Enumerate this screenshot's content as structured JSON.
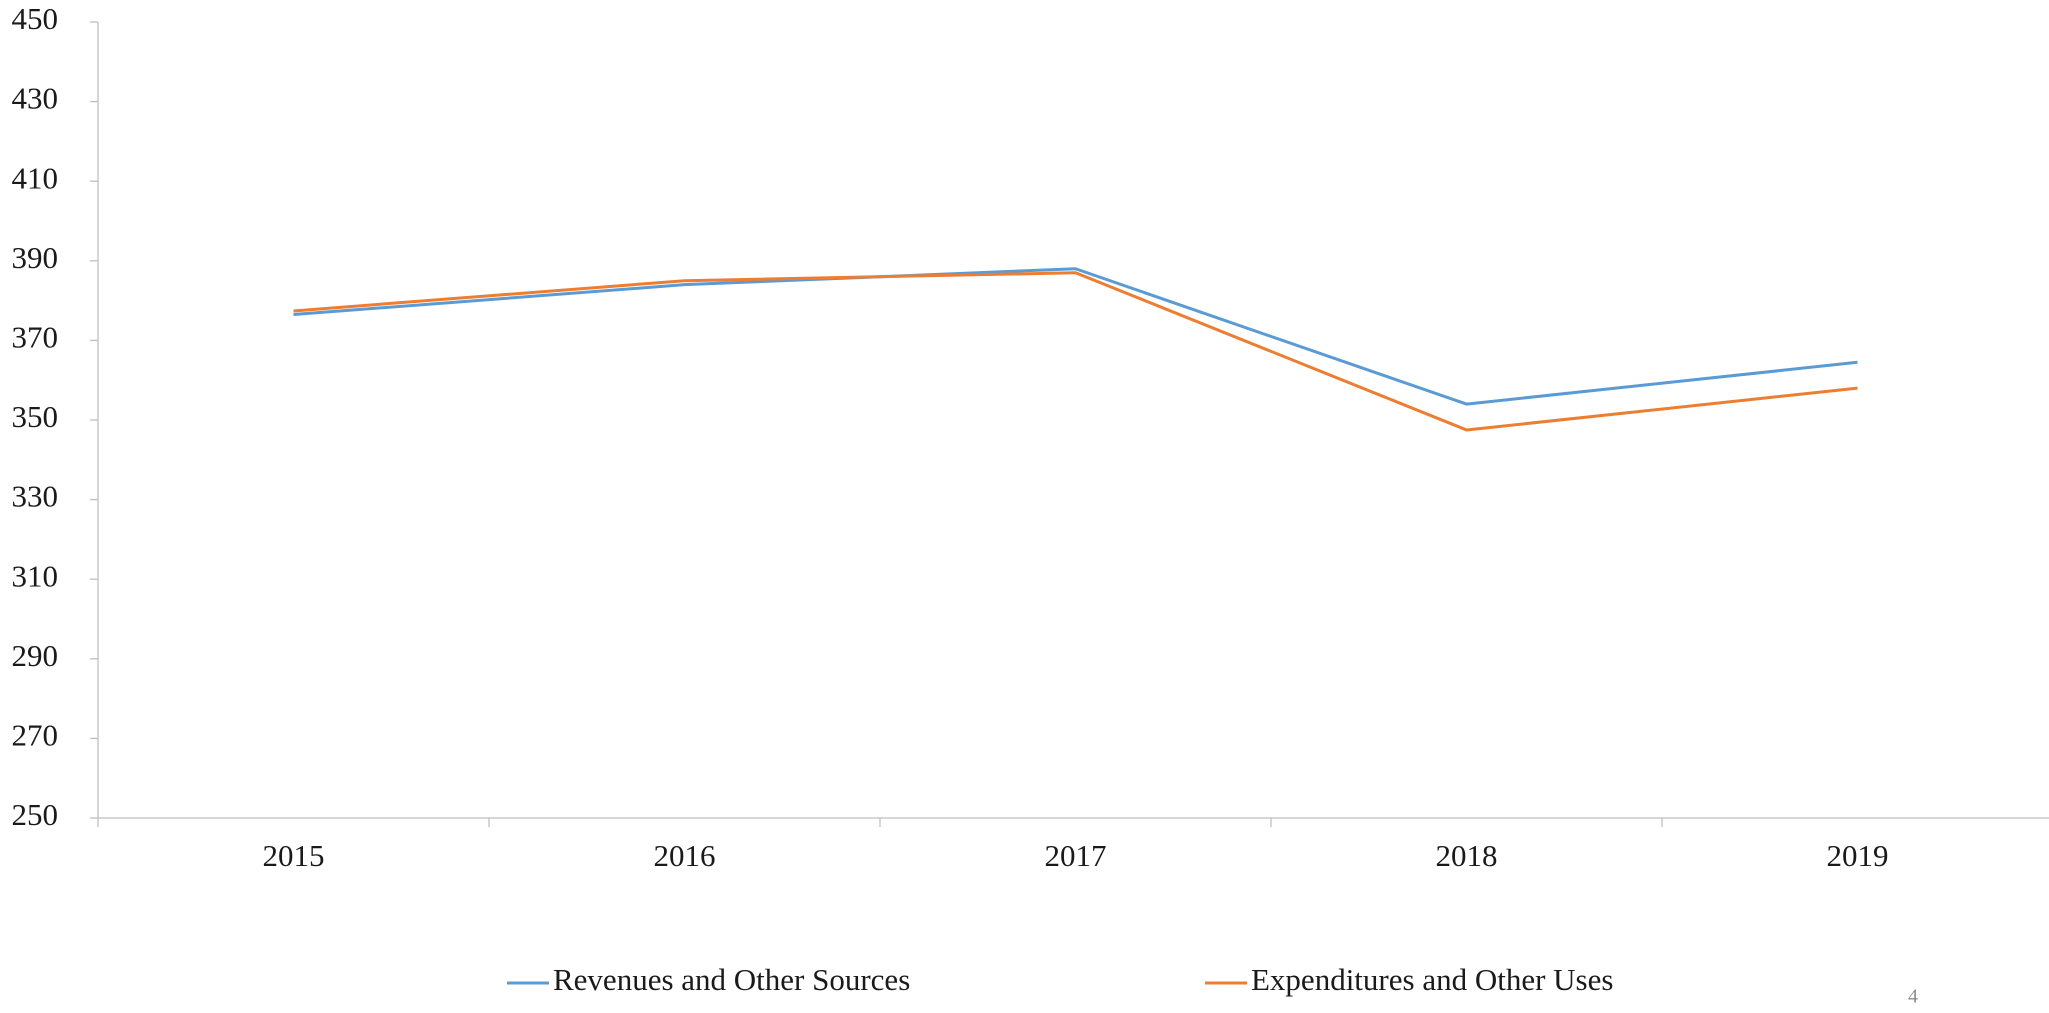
{
  "chart_data": {
    "type": "line",
    "categories": [
      "2015",
      "2016",
      "2017",
      "2018",
      "2019"
    ],
    "series": [
      {
        "name": "Revenues and Other Sources",
        "color": "#5b9bd5",
        "values": [
          376.5,
          384,
          388,
          354,
          364.5
        ]
      },
      {
        "name": "Expenditures and Other Uses",
        "color": "#ed7d31",
        "values": [
          377.4,
          385,
          387,
          347.5,
          358
        ]
      }
    ],
    "ylim": [
      250,
      450
    ],
    "yticks": [
      250,
      270,
      290,
      310,
      330,
      350,
      370,
      390,
      410,
      430,
      450
    ],
    "grid": false,
    "legend": "bottom",
    "page_number": "4"
  }
}
